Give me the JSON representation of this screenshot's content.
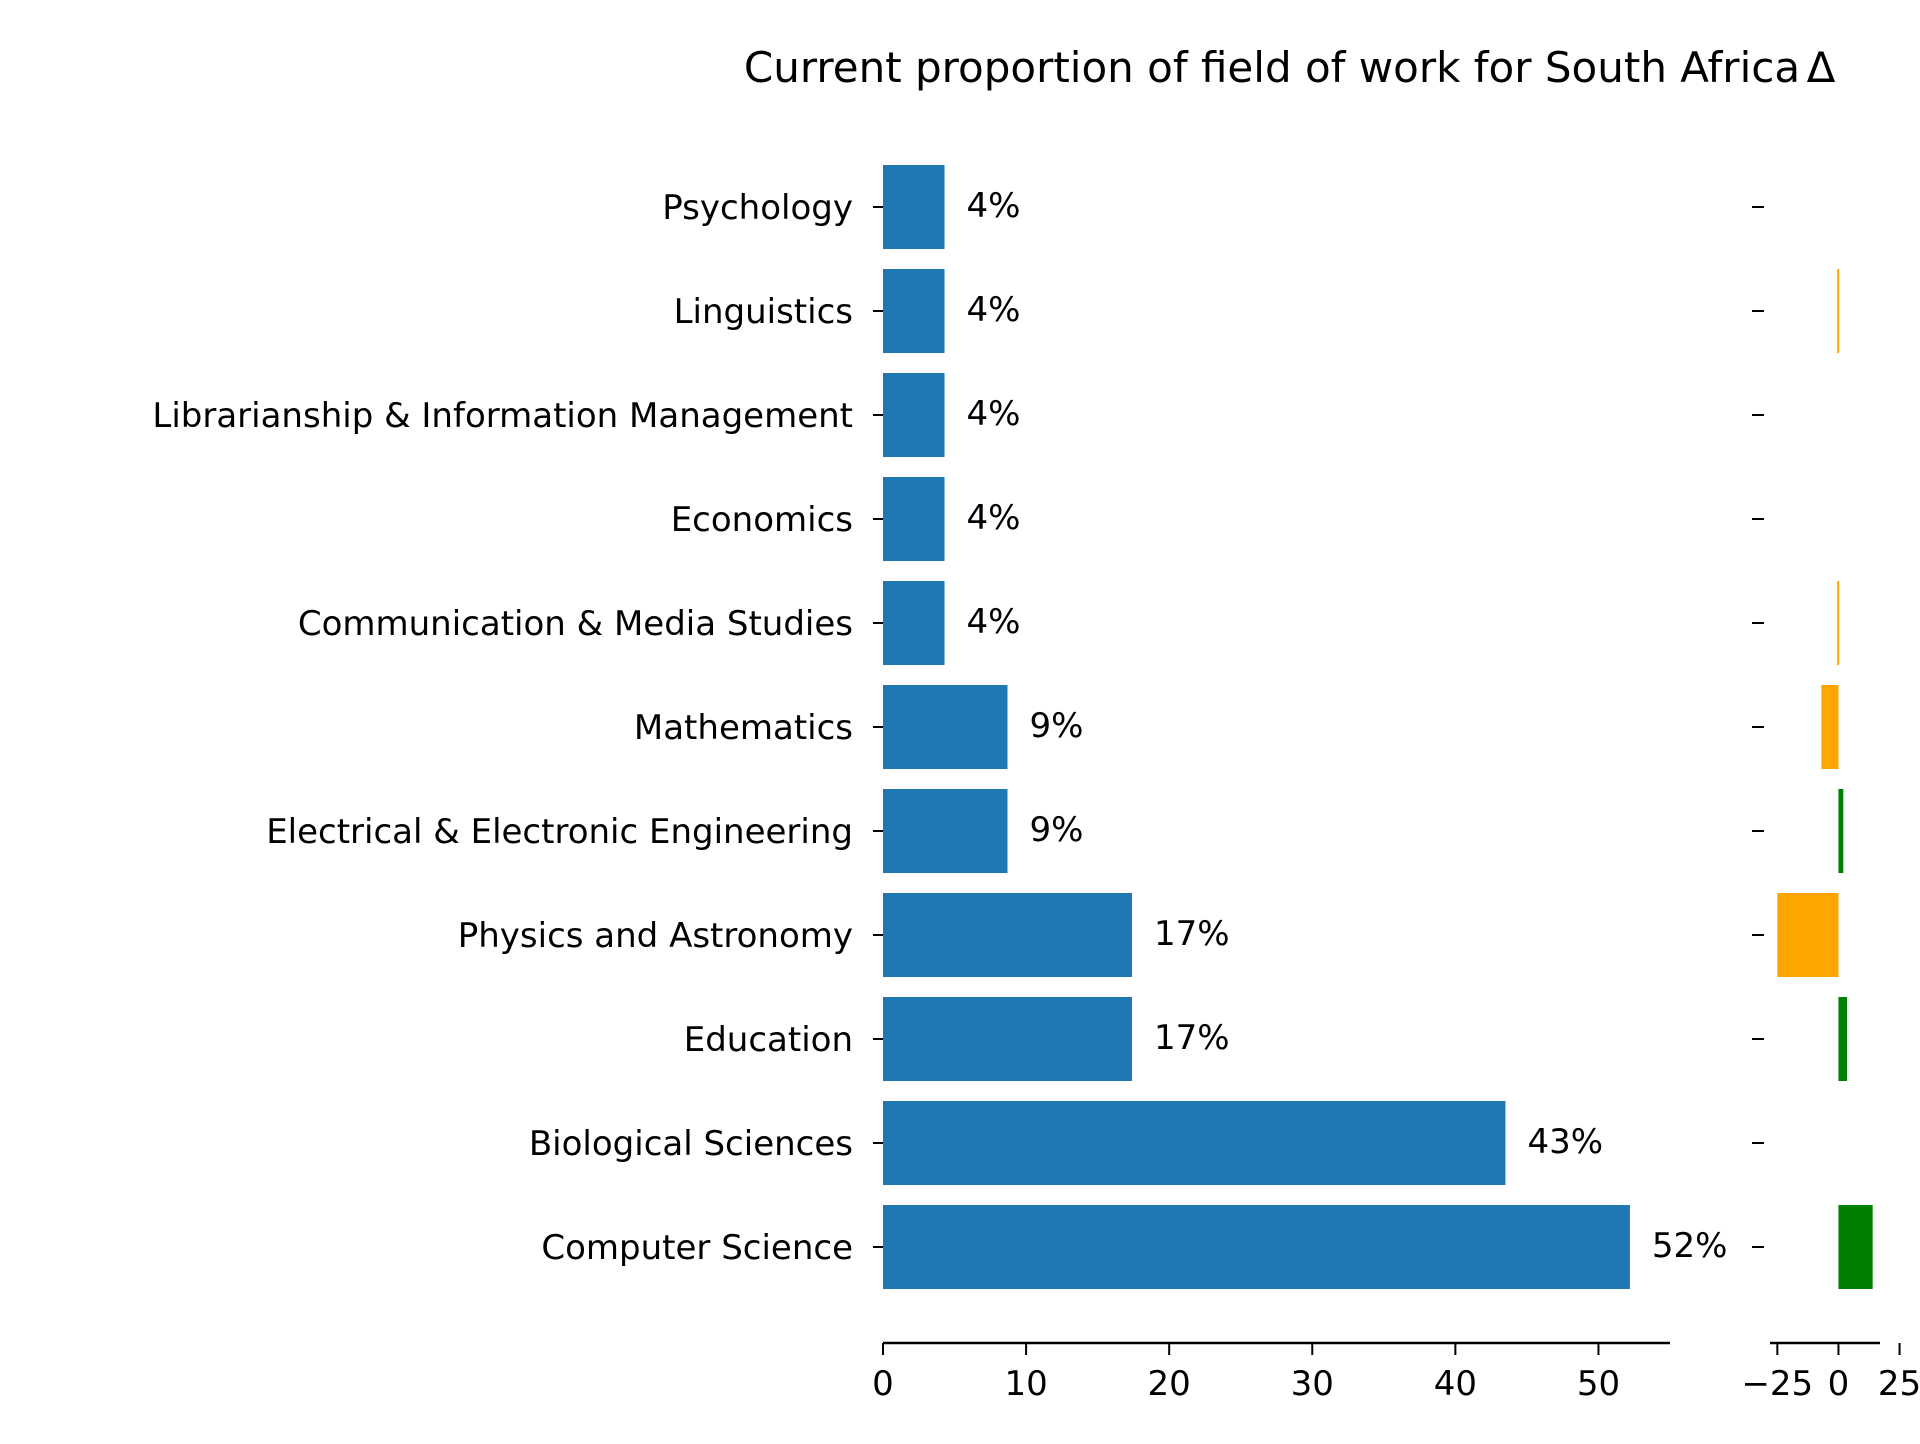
{
  "chart_data": [
    {
      "type": "bar",
      "orientation": "horizontal",
      "title": "Current proportion of field of work for South Africa",
      "categories": [
        "Psychology",
        "Linguistics",
        "Librarianship & Information Management",
        "Economics",
        "Communication & Media Studies",
        "Mathematics",
        "Electrical & Electronic Engineering",
        "Physics and Astronomy",
        "Education",
        "Biological Sciences",
        "Computer Science"
      ],
      "values": [
        4.3,
        4.3,
        4.3,
        4.3,
        4.3,
        8.7,
        8.7,
        17.4,
        17.4,
        43.5,
        52.2
      ],
      "data_labels": [
        "4%",
        "4%",
        "4%",
        "4%",
        "4%",
        "9%",
        "9%",
        "17%",
        "17%",
        "43%",
        "52%"
      ],
      "xlim": [
        0,
        55
      ],
      "xticks": [
        0,
        10,
        20,
        30,
        40,
        50
      ],
      "xtick_labels": [
        "0",
        "10",
        "20",
        "30",
        "40",
        "50"
      ],
      "xlabel": "",
      "ylabel": "",
      "bar_color": "#1f77b4",
      "grid": false
    },
    {
      "type": "bar",
      "orientation": "horizontal",
      "title": "Δ",
      "categories": [
        "Psychology",
        "Linguistics",
        "Librarianship & Information Management",
        "Economics",
        "Communication & Media Studies",
        "Mathematics",
        "Electrical & Electronic Engineering",
        "Physics and Astronomy",
        "Education",
        "Biological Sciences",
        "Computer Science"
      ],
      "values": [
        0,
        -0.5,
        0,
        0,
        -0.5,
        -7,
        2,
        -25,
        3.5,
        0,
        14
      ],
      "xlim": [
        -28,
        17
      ],
      "xticks": [
        -25,
        0,
        25
      ],
      "xtick_labels": [
        "−25",
        "0",
        "25"
      ],
      "positive_color": "#008000",
      "negative_color": "#ffa500",
      "grid": false
    }
  ]
}
